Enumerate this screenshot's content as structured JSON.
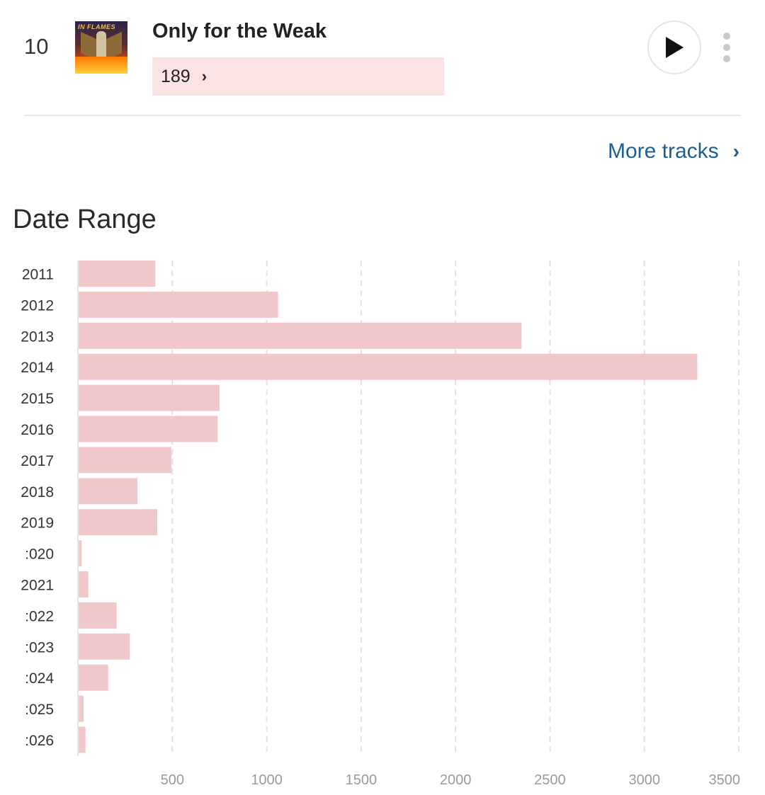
{
  "track": {
    "rank": "10",
    "title": "Only for the Weak",
    "count": "189",
    "cover_text": "IN FLAMES",
    "count_bar_color": "#fbe3e4"
  },
  "icons": {
    "play": "play-icon",
    "more": "vertical-ellipsis-icon",
    "count_chevron": "chevron-right-icon",
    "more_tracks_chevron": "chevron-right-icon"
  },
  "links": {
    "more_tracks": "More tracks",
    "link_color": "#1d5f8f"
  },
  "date_range": {
    "title": "Date Range"
  },
  "chart_data": {
    "type": "bar",
    "orientation": "horizontal",
    "bar_color": "#f0c8ca",
    "categories": [
      "2011",
      "2012",
      "2013",
      "2014",
      "2015",
      "2016",
      "2017",
      "2018",
      "2019",
      "2020",
      "2021",
      "2022",
      "2023",
      "2024",
      "2025",
      "2026"
    ],
    "category_labels": [
      "2011",
      "2012",
      "2013",
      "2014",
      "2015",
      "2016",
      "2017",
      "2018",
      "2019",
      ":020",
      "2021",
      ":022",
      ":023",
      ":024",
      ":025",
      ":026"
    ],
    "values": [
      410,
      1060,
      2350,
      3280,
      750,
      740,
      495,
      315,
      420,
      20,
      55,
      205,
      275,
      160,
      30,
      40
    ],
    "ticks": [
      500,
      1000,
      1500,
      2000,
      2500,
      3000,
      3500
    ],
    "xlim": [
      0,
      3500
    ],
    "grid": true,
    "title": "",
    "xlabel": "",
    "ylabel": ""
  }
}
